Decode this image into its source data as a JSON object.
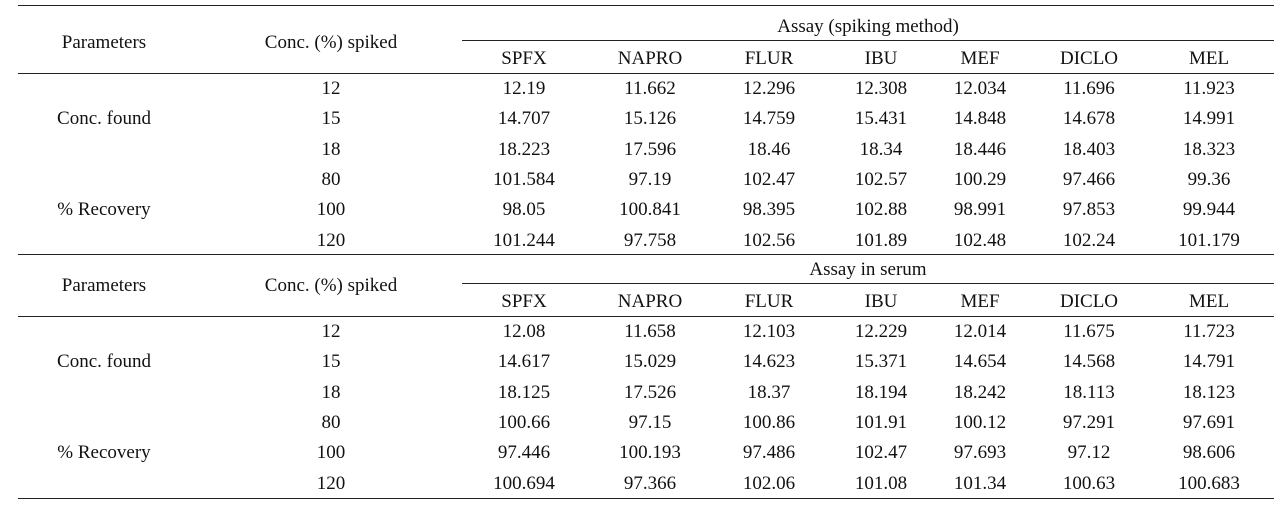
{
  "columns": [
    "SPFX",
    "NAPRO",
    "FLUR",
    "IBU",
    "MEF",
    "DICLO",
    "MEL"
  ],
  "sections": [
    {
      "param_header": "Parameters",
      "conc_header": "Conc. (%) spiked",
      "assay_title": "Assay (spiking method)",
      "conc_found_label": "Conc. found",
      "recovery_label": "% Recovery",
      "rows": [
        {
          "spiked": "12",
          "values": [
            "12.19",
            "11.662",
            "12.296",
            "12.308",
            "12.034",
            "11.696",
            "11.923"
          ]
        },
        {
          "spiked": "15",
          "values": [
            "14.707",
            "15.126",
            "14.759",
            "15.431",
            "14.848",
            "14.678",
            "14.991"
          ]
        },
        {
          "spiked": "18",
          "values": [
            "18.223",
            "17.596",
            "18.46",
            "18.34",
            "18.446",
            "18.403",
            "18.323"
          ]
        },
        {
          "spiked": "80",
          "values": [
            "101.584",
            "97.19",
            "102.47",
            "102.57",
            "100.29",
            "97.466",
            "99.36"
          ]
        },
        {
          "spiked": "100",
          "values": [
            "98.05",
            "100.841",
            "98.395",
            "102.88",
            "98.991",
            "97.853",
            "99.944"
          ]
        },
        {
          "spiked": "120",
          "values": [
            "101.244",
            "97.758",
            "102.56",
            "101.89",
            "102.48",
            "102.24",
            "101.179"
          ]
        }
      ]
    },
    {
      "param_header": "Parameters",
      "conc_header": "Conc. (%) spiked",
      "assay_title": "Assay in serum",
      "conc_found_label": "Conc. found",
      "recovery_label": "% Recovery",
      "rows": [
        {
          "spiked": "12",
          "values": [
            "12.08",
            "11.658",
            "12.103",
            "12.229",
            "12.014",
            "11.675",
            "11.723"
          ]
        },
        {
          "spiked": "15",
          "values": [
            "14.617",
            "15.029",
            "14.623",
            "15.371",
            "14.654",
            "14.568",
            "14.791"
          ]
        },
        {
          "spiked": "18",
          "values": [
            "18.125",
            "17.526",
            "18.37",
            "18.194",
            "18.242",
            "18.113",
            "18.123"
          ]
        },
        {
          "spiked": "80",
          "values": [
            "100.66",
            "97.15",
            "100.86",
            "101.91",
            "100.12",
            "97.291",
            "97.691"
          ]
        },
        {
          "spiked": "100",
          "values": [
            "97.446",
            "100.193",
            "97.486",
            "102.47",
            "97.693",
            "97.12",
            "98.606"
          ]
        },
        {
          "spiked": "120",
          "values": [
            "100.694",
            "97.366",
            "102.06",
            "101.08",
            "101.34",
            "100.63",
            "100.683"
          ]
        }
      ]
    }
  ]
}
